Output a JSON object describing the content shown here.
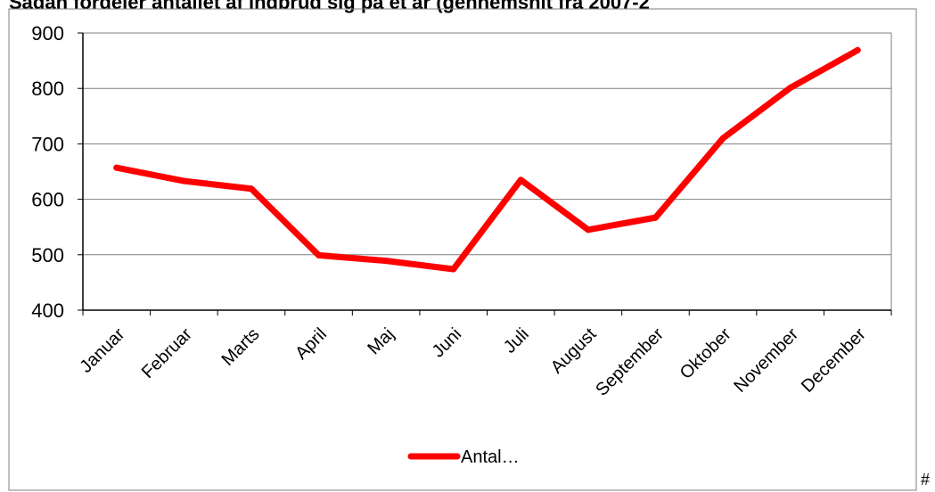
{
  "title": "Sådan fordeler antallet af indbrud sig på et år (gennemsnit fra 2007-2",
  "footnote_mark": "#",
  "colors": {
    "line": "#ff0000",
    "grid": "#7f7f7f",
    "axis": "#000000",
    "frame": "#7f7f7f"
  },
  "chart_data": {
    "type": "line",
    "categories": [
      "Januar",
      "Februar",
      "Marts",
      "April",
      "Maj",
      "Juni",
      "Juli",
      "August",
      "September",
      "Oktober",
      "November",
      "December"
    ],
    "series": [
      {
        "name": "Antal…",
        "values": [
          657,
          633,
          619,
          499,
          489,
          474,
          635,
          545,
          567,
          710,
          801,
          869
        ]
      }
    ],
    "ylim": [
      400,
      900
    ],
    "yticks": [
      400,
      500,
      600,
      700,
      800,
      900
    ],
    "grid": true,
    "legend": "bottom"
  }
}
